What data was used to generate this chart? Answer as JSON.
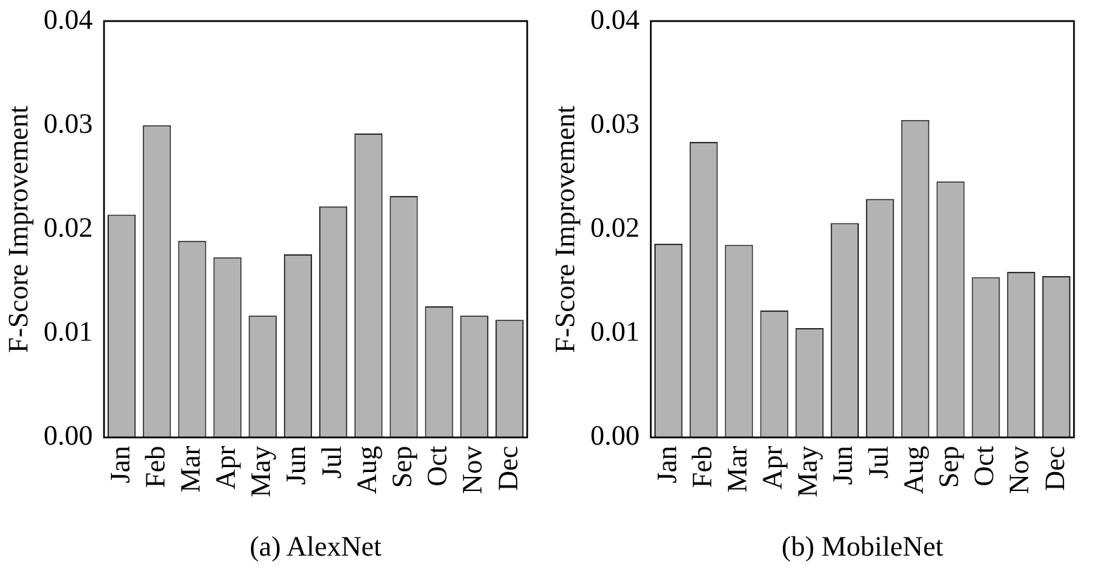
{
  "chart_data": [
    {
      "type": "bar",
      "xlabel": "(a) AlexNet",
      "ylabel": "F-Score Improvement",
      "categories": [
        "Jan",
        "Feb",
        "Mar",
        "Apr",
        "May",
        "Jun",
        "Jul",
        "Aug",
        "Sep",
        "Oct",
        "Nov",
        "Dec"
      ],
      "values": [
        0.0214,
        0.03,
        0.0189,
        0.0173,
        0.0117,
        0.0176,
        0.0222,
        0.0292,
        0.0232,
        0.0126,
        0.0117,
        0.0113
      ],
      "color": "#b3b3b3",
      "ylim": [
        0,
        0.04
      ],
      "yticks": [
        {
          "value": 0,
          "label": "0.00"
        },
        0.01,
        0.02,
        0.03,
        0.04
      ]
    },
    {
      "type": "bar",
      "xlabel": "(b) MobileNet",
      "ylabel": "F-Score Improvement",
      "categories": [
        "Jan",
        "Feb",
        "Mar",
        "Apr",
        "May",
        "Jun",
        "Jul",
        "Aug",
        "Sep",
        "Oct",
        "Nov",
        "Dec"
      ],
      "values": [
        0.0186,
        0.0284,
        0.0185,
        0.0122,
        0.0105,
        0.0206,
        0.0229,
        0.0305,
        0.0246,
        0.0154,
        0.0159,
        0.0155
      ],
      "color": "#b3b3b3",
      "ylim": [
        0,
        0.04
      ],
      "yticks": [
        {
          "value": 0,
          "label": "0.00"
        },
        0.01,
        0.02,
        0.03,
        0.04
      ]
    }
  ]
}
